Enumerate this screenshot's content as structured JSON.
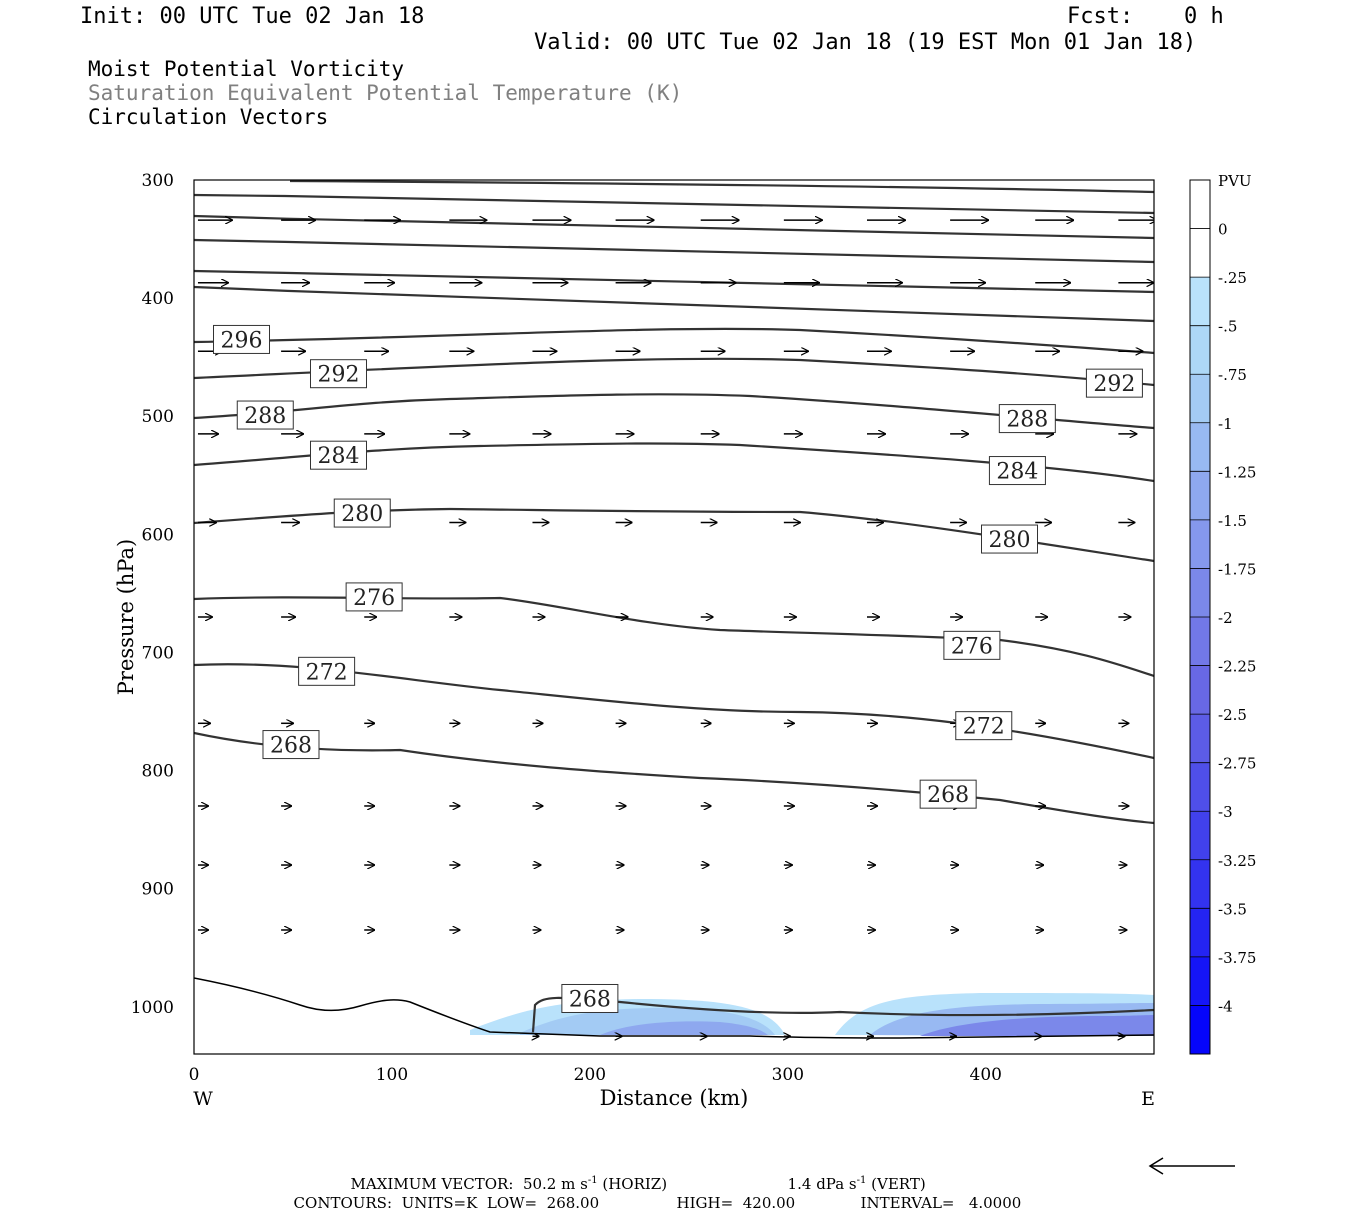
{
  "header": {
    "init": "Init: 00 UTC Tue 02 Jan 18",
    "fcst_label": "Fcst:",
    "fcst_value": "0 h",
    "valid": "Valid: 00 UTC Tue 02 Jan 18 (19 EST Mon 01 Jan 18)"
  },
  "legend_lines": [
    {
      "text": "Moist Potential Vorticity",
      "color": "#000000"
    },
    {
      "text": "Saturation Equivalent Potential Temperature (K)",
      "color": "#808080"
    },
    {
      "text": "Circulation Vectors",
      "color": "#000000"
    }
  ],
  "chart_data": {
    "type": "cross-section",
    "xlabel": "Distance (km)",
    "ylabel": "Pressure (hPa)",
    "xlim": [
      0,
      485
    ],
    "ylim": [
      1040,
      300
    ],
    "xticks": [
      0,
      100,
      200,
      300,
      400
    ],
    "yticks": [
      300,
      400,
      500,
      600,
      700,
      800,
      900,
      1000
    ],
    "x_end_labels": {
      "left": "W",
      "right": "E"
    },
    "colorbar": {
      "title": "PVU",
      "levels": [
        "0",
        "-.25",
        "-.5",
        "-.75",
        "-1",
        "-1.25",
        "-1.5",
        "-1.75",
        "-2",
        "-2.25",
        "-2.5",
        "-2.75",
        "-3",
        "-3.25",
        "-3.5",
        "-3.75",
        "-4"
      ],
      "colors": [
        "#ffffff",
        "#ffffff",
        "#b9e2fb",
        "#add8f7",
        "#a3cbf4",
        "#98b9f2",
        "#8ea8ef",
        "#8598ed",
        "#7b88ea",
        "#7278e8",
        "#6868e5",
        "#5c5ce7",
        "#4f4fe9",
        "#4141ec",
        "#3333ef",
        "#2424f3",
        "#1515f7",
        "#0505fb"
      ]
    },
    "contour_labels": [
      {
        "text": "296",
        "x": 24,
        "p": 435
      },
      {
        "text": "292",
        "x": 73,
        "p": 464
      },
      {
        "text": "292",
        "x": 465,
        "p": 472
      },
      {
        "text": "288",
        "x": 36,
        "p": 499
      },
      {
        "text": "288",
        "x": 421,
        "p": 502
      },
      {
        "text": "284",
        "x": 73,
        "p": 533
      },
      {
        "text": "284",
        "x": 416,
        "p": 546
      },
      {
        "text": "280",
        "x": 85,
        "p": 582
      },
      {
        "text": "280",
        "x": 412,
        "p": 604
      },
      {
        "text": "276",
        "x": 91,
        "p": 653
      },
      {
        "text": "276",
        "x": 393,
        "p": 694
      },
      {
        "text": "272",
        "x": 67,
        "p": 716
      },
      {
        "text": "272",
        "x": 399,
        "p": 762
      },
      {
        "text": "268",
        "x": 49,
        "p": 778
      },
      {
        "text": "268",
        "x": 381,
        "p": 820
      },
      {
        "text": "268",
        "x": 200,
        "p": 993
      }
    ],
    "footer": {
      "max_vector_label": "MAXIMUM VECTOR:",
      "horiz_value": "50.2",
      "horiz_unit_base": "m s",
      "horiz_unit_exp": "-1",
      "horiz_tag": "(HORIZ)",
      "vert_value": "1.4",
      "vert_unit_base": "dPa s",
      "vert_unit_exp": "-1",
      "vert_tag": "(VERT)",
      "contours_label": "CONTOURS:",
      "units": "UNITS=K",
      "low_label": "LOW=",
      "low_value": "268.00",
      "high_label": "HIGH=",
      "high_value": "420.00",
      "interval_label": "INTERVAL=",
      "interval_value": "4.0000"
    }
  }
}
